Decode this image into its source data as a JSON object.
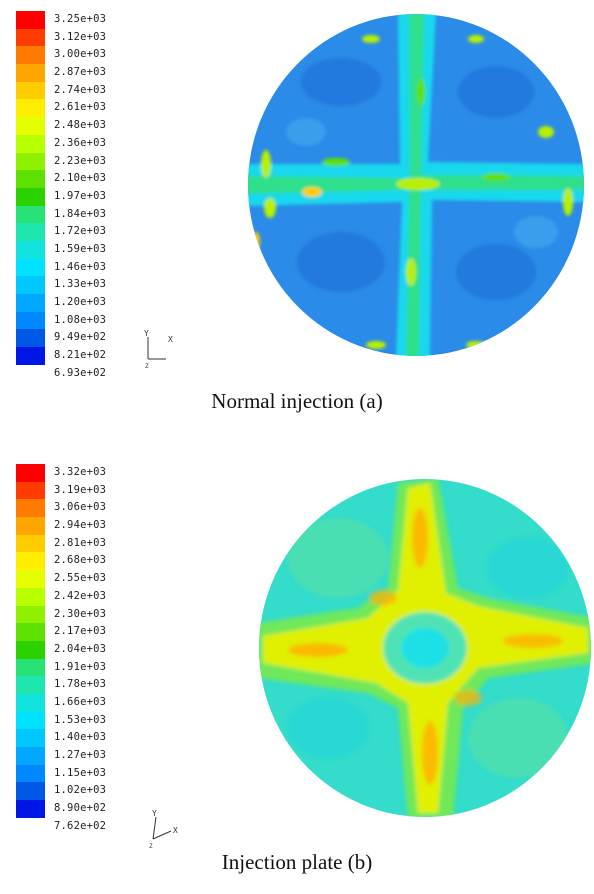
{
  "figures": [
    {
      "id": "a",
      "caption": "Normal injection (a)",
      "legend": {
        "colors": [
          "#ff0000",
          "#ff3b00",
          "#ff7a00",
          "#ffa500",
          "#ffcc00",
          "#ffee00",
          "#e6ff00",
          "#b8ff00",
          "#8ff000",
          "#5ee000",
          "#2cd200",
          "#28e276",
          "#1ee6ad",
          "#12e3de",
          "#00e2ff",
          "#00c8ff",
          "#00a8ff",
          "#0088ff",
          "#0059e6",
          "#0016e6"
        ],
        "labels": [
          "3.25e+03",
          "3.12e+03",
          "3.00e+03",
          "2.87e+03",
          "2.74e+03",
          "2.61e+03",
          "2.48e+03",
          "2.36e+03",
          "2.23e+03",
          "2.10e+03",
          "1.97e+03",
          "1.84e+03",
          "1.72e+03",
          "1.59e+03",
          "1.46e+03",
          "1.33e+03",
          "1.20e+03",
          "1.08e+03",
          "9.49e+02",
          "8.21e+02",
          "6.93e+02"
        ]
      },
      "axis": {
        "x": "X",
        "y": "Y",
        "z": "Z"
      }
    },
    {
      "id": "b",
      "caption": "Injection plate (b)",
      "legend": {
        "colors": [
          "#ff0000",
          "#ff3b00",
          "#ff7a00",
          "#ffa500",
          "#ffcc00",
          "#ffee00",
          "#e6ff00",
          "#b8ff00",
          "#8ff000",
          "#5ee000",
          "#2cd200",
          "#28e276",
          "#1ee6ad",
          "#12e3de",
          "#00e2ff",
          "#00c8ff",
          "#00a8ff",
          "#0088ff",
          "#0059e6",
          "#0016e6"
        ],
        "labels": [
          "3.32e+03",
          "3.19e+03",
          "3.06e+03",
          "2.94e+03",
          "2.81e+03",
          "2.68e+03",
          "2.55e+03",
          "2.42e+03",
          "2.30e+03",
          "2.17e+03",
          "2.04e+03",
          "1.91e+03",
          "1.78e+03",
          "1.66e+03",
          "1.53e+03",
          "1.40e+03",
          "1.27e+03",
          "1.15e+03",
          "1.02e+03",
          "8.90e+02",
          "7.62e+02"
        ]
      },
      "axis": {
        "x": "X",
        "y": "Y",
        "z": "Z"
      }
    }
  ]
}
